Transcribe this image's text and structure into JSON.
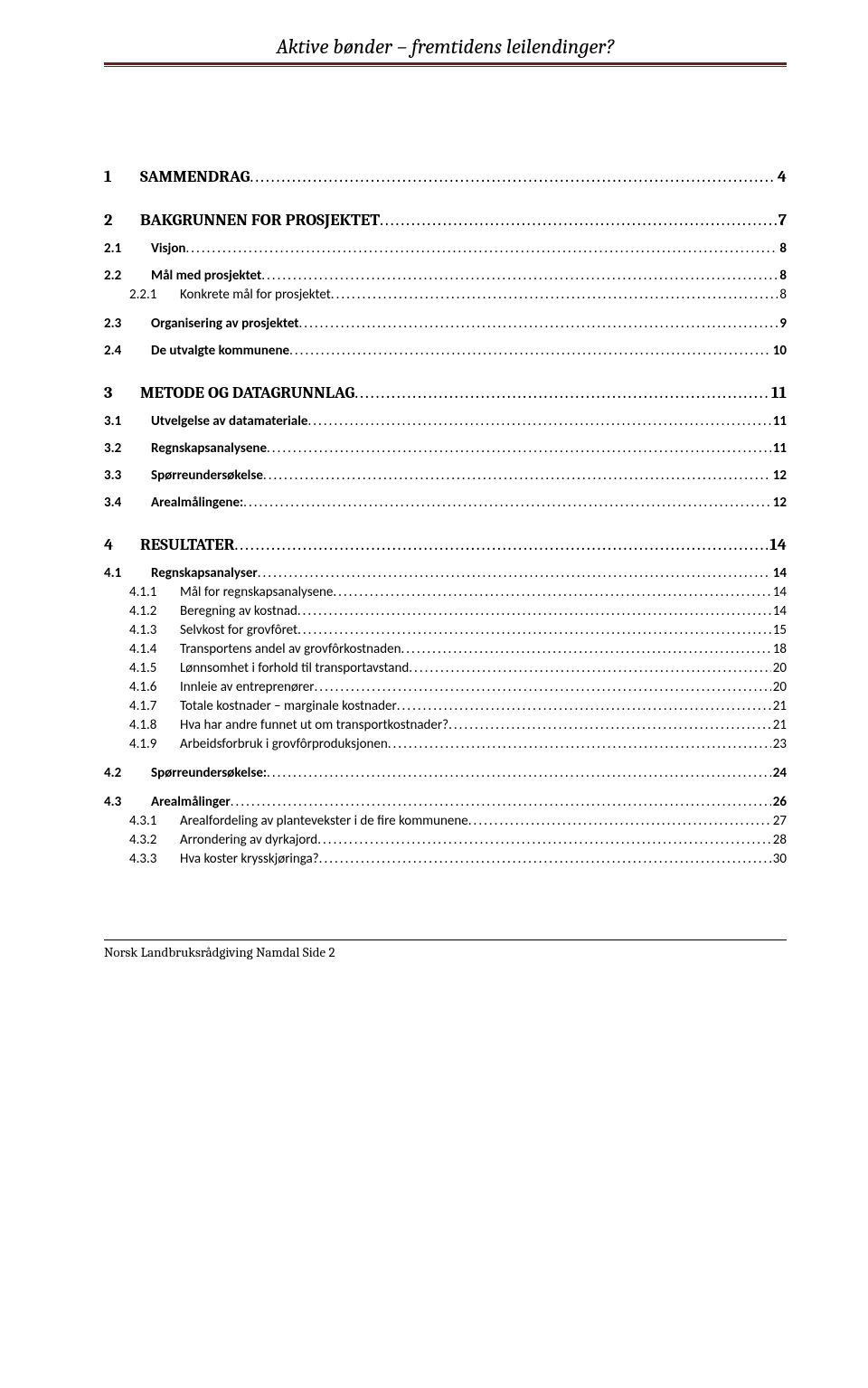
{
  "header": {
    "title": "Aktive bønder – fremtidens leilendinger?"
  },
  "toc": [
    {
      "level": 1,
      "num": "1",
      "label": "SAMMENDRAG",
      "page": "4"
    },
    {
      "level": 1,
      "num": "2",
      "label": "BAKGRUNNEN FOR PROSJEKTET",
      "page": "7"
    },
    {
      "level": 2,
      "num": "2.1",
      "label": "Visjon",
      "page": "8"
    },
    {
      "level": 2,
      "num": "2.2",
      "label": "Mål med prosjektet",
      "page": "8"
    },
    {
      "level": 3,
      "num": "2.2.1",
      "label": "Konkrete mål for prosjektet",
      "page": "8"
    },
    {
      "level": 2,
      "num": "2.3",
      "label": "Organisering av prosjektet",
      "page": "9",
      "gap": true
    },
    {
      "level": 2,
      "num": "2.4",
      "label": "De utvalgte kommunene",
      "page": "10"
    },
    {
      "level": 1,
      "num": "3",
      "label": "METODE OG DATAGRUNNLAG",
      "page": "11"
    },
    {
      "level": 2,
      "num": "3.1",
      "label": "Utvelgelse av datamateriale",
      "page": "11"
    },
    {
      "level": 2,
      "num": "3.2",
      "label": "Regnskapsanalysene",
      "page": "11"
    },
    {
      "level": 2,
      "num": "3.3",
      "label": "Spørreundersøkelse",
      "page": "12"
    },
    {
      "level": 2,
      "num": "3.4",
      "label": "Arealmålingene:",
      "page": "12"
    },
    {
      "level": 1,
      "num": "4",
      "label": "RESULTATER",
      "page": "14"
    },
    {
      "level": 2,
      "num": "4.1",
      "label": "Regnskapsanalyser",
      "page": "14"
    },
    {
      "level": 3,
      "num": "4.1.1",
      "label": "Mål for regnskapsanalysene",
      "page": "14"
    },
    {
      "level": 3,
      "num": "4.1.2",
      "label": "Beregning av kostnad",
      "page": "14"
    },
    {
      "level": 3,
      "num": "4.1.3",
      "label": "Selvkost for grovfôret",
      "page": "15"
    },
    {
      "level": 3,
      "num": "4.1.4",
      "label": "Transportens andel av grovfôrkostnaden",
      "page": "18"
    },
    {
      "level": 3,
      "num": "4.1.5",
      "label": "Lønnsomhet i forhold til transportavstand",
      "page": "20"
    },
    {
      "level": 3,
      "num": "4.1.6",
      "label": "Innleie av entreprenører",
      "page": "20"
    },
    {
      "level": 3,
      "num": "4.1.7",
      "label": "Totale kostnader – marginale kostnader",
      "page": "21"
    },
    {
      "level": 3,
      "num": "4.1.8",
      "label": "Hva har andre funnet ut om transportkostnader?",
      "page": "21"
    },
    {
      "level": 3,
      "num": "4.1.9",
      "label": "Arbeidsforbruk i grovfôrproduksjonen",
      "page": "23"
    },
    {
      "level": 2,
      "num": "4.2",
      "label": "Spørreundersøkelse:",
      "page": "24",
      "gap": true
    },
    {
      "level": 2,
      "num": "4.3",
      "label": "Arealmålinger",
      "page": "26",
      "gap": true
    },
    {
      "level": 3,
      "num": "4.3.1",
      "label": "Arealfordeling av plantevekster i de fire kommunene",
      "page": "27"
    },
    {
      "level": 3,
      "num": "4.3.2",
      "label": "Arrondering av dyrkajord",
      "page": "28"
    },
    {
      "level": 3,
      "num": "4.3.3",
      "label": "Hva koster krysskjøringa?",
      "page": "30"
    }
  ],
  "footer": {
    "text": "Norsk Landbruksrådgiving Namdal  Side 2"
  },
  "colors": {
    "rule": "#632423",
    "text": "#000000",
    "background": "#ffffff"
  }
}
